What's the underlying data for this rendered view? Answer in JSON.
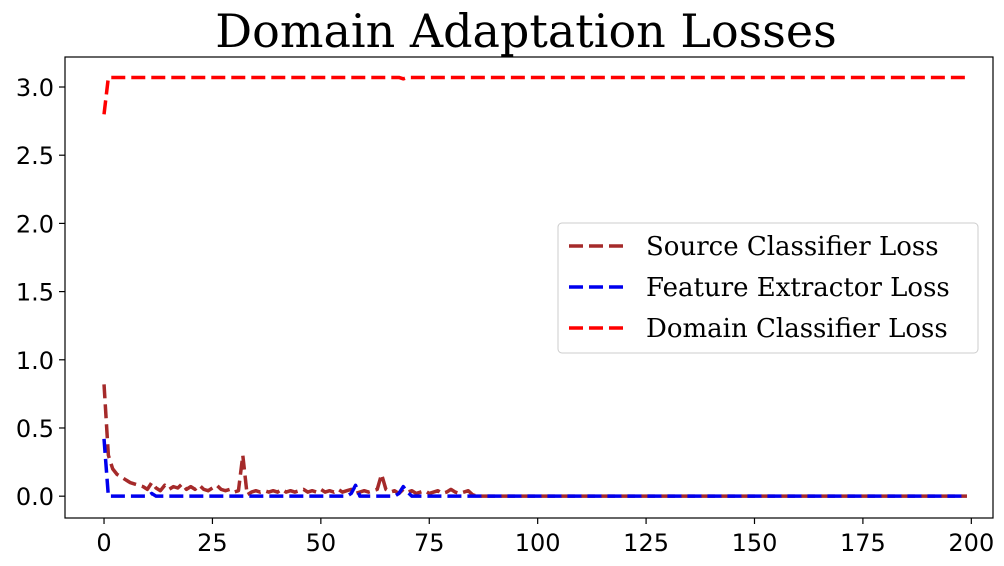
{
  "chart_data": {
    "type": "line",
    "title": "Domain Adaptation Losses",
    "xlabel": "",
    "ylabel": "",
    "xlim": [
      -9,
      205
    ],
    "ylim": [
      -0.16,
      3.22
    ],
    "xticks": [
      0,
      25,
      50,
      75,
      100,
      125,
      150,
      175,
      200
    ],
    "xtick_labels": [
      "0",
      "25",
      "50",
      "75",
      "100",
      "125",
      "150",
      "175",
      "200"
    ],
    "yticks": [
      0.0,
      0.5,
      1.0,
      1.5,
      2.0,
      2.5,
      3.0
    ],
    "ytick_labels": [
      "0.0",
      "0.5",
      "1.0",
      "1.5",
      "2.0",
      "2.5",
      "3.0"
    ],
    "grid": false,
    "legend_position": "center-right",
    "series": [
      {
        "name": "Source Classifier Loss",
        "color": "#a52a2a",
        "linestyle": "dashed",
        "points": [
          [
            0,
            0.82
          ],
          [
            1,
            0.3
          ],
          [
            2,
            0.2
          ],
          [
            3,
            0.16
          ],
          [
            4,
            0.14
          ],
          [
            5,
            0.12
          ],
          [
            6,
            0.1
          ],
          [
            7,
            0.09
          ],
          [
            8,
            0.08
          ],
          [
            9,
            0.07
          ],
          [
            10,
            0.05
          ],
          [
            11,
            0.1
          ],
          [
            12,
            0.06
          ],
          [
            13,
            0.04
          ],
          [
            14,
            0.08
          ],
          [
            15,
            0.05
          ],
          [
            16,
            0.07
          ],
          [
            17,
            0.06
          ],
          [
            18,
            0.09
          ],
          [
            19,
            0.05
          ],
          [
            20,
            0.07
          ],
          [
            21,
            0.05
          ],
          [
            22,
            0.08
          ],
          [
            23,
            0.05
          ],
          [
            24,
            0.04
          ],
          [
            25,
            0.06
          ],
          [
            26,
            0.08
          ],
          [
            27,
            0.05
          ],
          [
            28,
            0.04
          ],
          [
            29,
            0.05
          ],
          [
            30,
            0.03
          ],
          [
            31,
            0.04
          ],
          [
            32,
            0.3
          ],
          [
            33,
            0.01
          ],
          [
            34,
            0.03
          ],
          [
            35,
            0.04
          ],
          [
            36,
            0.03
          ],
          [
            37,
            0.04
          ],
          [
            38,
            0.03
          ],
          [
            39,
            0.04
          ],
          [
            40,
            0.03
          ],
          [
            41,
            0.05
          ],
          [
            42,
            0.03
          ],
          [
            43,
            0.04
          ],
          [
            44,
            0.03
          ],
          [
            45,
            0.04
          ],
          [
            46,
            0.05
          ],
          [
            47,
            0.03
          ],
          [
            48,
            0.04
          ],
          [
            49,
            0.03
          ],
          [
            50,
            0.05
          ],
          [
            51,
            0.03
          ],
          [
            52,
            0.04
          ],
          [
            53,
            0.03
          ],
          [
            54,
            0.05
          ],
          [
            55,
            0.03
          ],
          [
            56,
            0.04
          ],
          [
            57,
            0.05
          ],
          [
            58,
            0.02
          ],
          [
            59,
            0.03
          ],
          [
            60,
            0.04
          ],
          [
            61,
            0.03
          ],
          [
            62,
            0.04
          ],
          [
            63,
            0.05
          ],
          [
            64,
            0.16
          ],
          [
            65,
            0.05
          ],
          [
            66,
            0.03
          ],
          [
            67,
            0.04
          ],
          [
            68,
            0.02
          ],
          [
            69,
            0.05
          ],
          [
            70,
            0.03
          ],
          [
            71,
            0.04
          ],
          [
            72,
            0.02
          ],
          [
            73,
            0.03
          ],
          [
            74,
            0.04
          ],
          [
            75,
            0.02
          ],
          [
            76,
            0.03
          ],
          [
            77,
            0.04
          ],
          [
            78,
            0.02
          ],
          [
            79,
            0.03
          ],
          [
            80,
            0.05
          ],
          [
            81,
            0.03
          ],
          [
            82,
            0.02
          ],
          [
            83,
            0.03
          ],
          [
            84,
            0.04
          ],
          [
            85,
            0.01
          ],
          [
            86,
            0.0
          ],
          [
            100,
            0.0
          ],
          [
            150,
            0.0
          ],
          [
            199,
            0.0
          ]
        ]
      },
      {
        "name": "Feature Extractor Loss",
        "color": "#0000ee",
        "linestyle": "dashed",
        "points": [
          [
            0,
            0.42
          ],
          [
            1,
            0.0
          ],
          [
            10,
            0.0
          ],
          [
            11,
            0.02
          ],
          [
            12,
            0.0
          ],
          [
            56,
            0.0
          ],
          [
            57,
            0.02
          ],
          [
            58,
            0.08
          ],
          [
            59,
            0.0
          ],
          [
            67,
            0.0
          ],
          [
            68,
            0.02
          ],
          [
            69,
            0.07
          ],
          [
            70,
            0.03
          ],
          [
            71,
            0.0
          ],
          [
            100,
            0.0
          ],
          [
            150,
            0.0
          ],
          [
            199,
            0.0
          ]
        ]
      },
      {
        "name": "Domain Classifier Loss",
        "color": "#ff0000",
        "linestyle": "dashed",
        "points": [
          [
            0,
            2.8
          ],
          [
            1,
            3.07
          ],
          [
            2,
            3.07
          ],
          [
            50,
            3.07
          ],
          [
            68,
            3.07
          ],
          [
            69,
            3.06
          ],
          [
            70,
            3.07
          ],
          [
            100,
            3.07
          ],
          [
            150,
            3.07
          ],
          [
            199,
            3.07
          ]
        ]
      }
    ]
  }
}
